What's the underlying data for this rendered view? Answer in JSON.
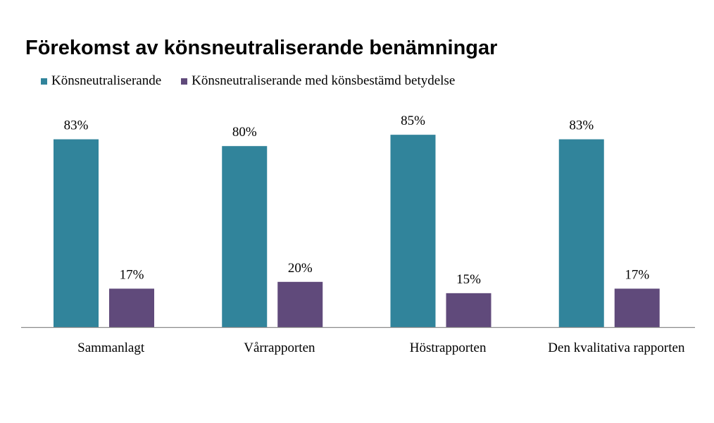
{
  "chart_data": {
    "type": "bar",
    "title": "Förekomst av könsneutraliserande benämningar",
    "xlabel": "",
    "ylabel": "",
    "ylim": [
      0,
      100
    ],
    "grid": false,
    "legend_position": "top-left",
    "categories": [
      "Sammanlagt",
      "Vårrapporten",
      "Höstrapporten",
      "Den kvalitativa rapporten"
    ],
    "series": [
      {
        "name": "Könsneutraliserande",
        "color": "#31849b",
        "values": [
          83,
          80,
          85,
          83
        ],
        "labels": [
          "83%",
          "80%",
          "85%",
          "83%"
        ]
      },
      {
        "name": "Könsneutraliserande med könsbestämd betydelse",
        "color": "#604a7b",
        "values": [
          17,
          20,
          15,
          17
        ],
        "labels": [
          "17%",
          "20%",
          "15%",
          "17%"
        ]
      }
    ]
  }
}
